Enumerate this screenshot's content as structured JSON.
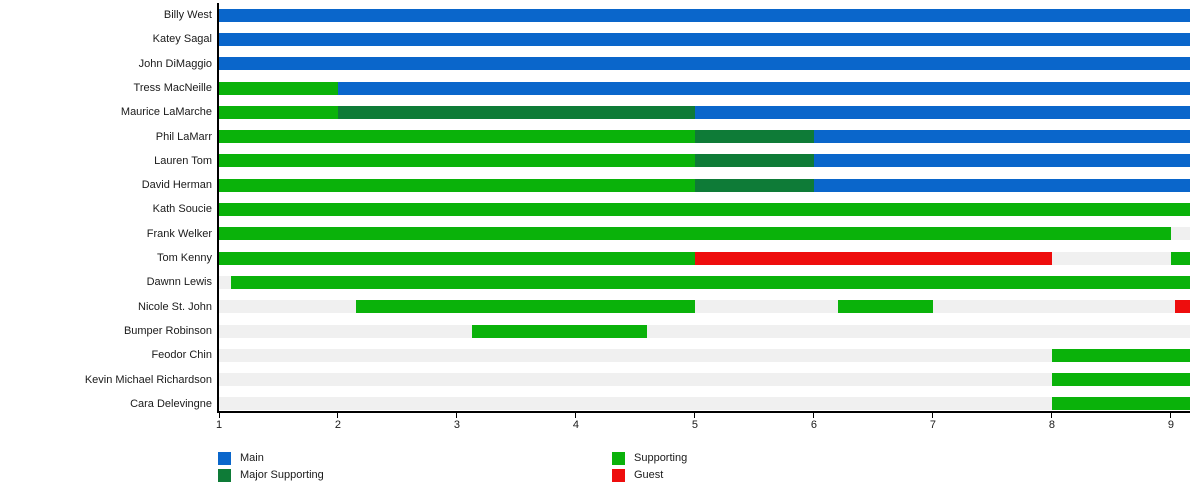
{
  "chart_data": {
    "type": "bar",
    "subtype": "horizontal-stacked-timeline",
    "title": "",
    "xlabel": "",
    "ylabel": "",
    "grid": false,
    "legend_position": "bottom",
    "x_axis": {
      "min": 1,
      "max": 9.16,
      "ticks": [
        1,
        2,
        3,
        4,
        5,
        6,
        7,
        8,
        9
      ]
    },
    "legend": [
      {
        "key": "main",
        "label": "Main"
      },
      {
        "key": "major_supporting",
        "label": "Major Supporting"
      },
      {
        "key": "supporting",
        "label": "Supporting"
      },
      {
        "key": "guest",
        "label": "Guest"
      }
    ],
    "colors": {
      "main": "#0a66cb",
      "major_supporting": "#0e7b37",
      "supporting": "#0ab20a",
      "guest": "#ee0d0d",
      "track": "#f0f0f0",
      "axis": "#000000",
      "text": "#1a1a1a"
    },
    "rows": [
      {
        "name": "Billy West",
        "segments": [
          {
            "role": "main",
            "start": 1,
            "end": 9.16
          }
        ]
      },
      {
        "name": "Katey Sagal",
        "segments": [
          {
            "role": "main",
            "start": 1,
            "end": 9.16
          }
        ]
      },
      {
        "name": "John DiMaggio",
        "segments": [
          {
            "role": "main",
            "start": 1,
            "end": 9.16
          }
        ]
      },
      {
        "name": "Tress MacNeille",
        "segments": [
          {
            "role": "supporting",
            "start": 1,
            "end": 2
          },
          {
            "role": "main",
            "start": 2,
            "end": 9.16
          }
        ]
      },
      {
        "name": "Maurice LaMarche",
        "segments": [
          {
            "role": "supporting",
            "start": 1,
            "end": 2
          },
          {
            "role": "major_supporting",
            "start": 2,
            "end": 5
          },
          {
            "role": "main",
            "start": 5,
            "end": 9.16
          }
        ]
      },
      {
        "name": "Phil LaMarr",
        "segments": [
          {
            "role": "supporting",
            "start": 1,
            "end": 5
          },
          {
            "role": "major_supporting",
            "start": 5,
            "end": 6
          },
          {
            "role": "main",
            "start": 6,
            "end": 9.16
          }
        ]
      },
      {
        "name": "Lauren Tom",
        "segments": [
          {
            "role": "supporting",
            "start": 1,
            "end": 5
          },
          {
            "role": "major_supporting",
            "start": 5,
            "end": 6
          },
          {
            "role": "main",
            "start": 6,
            "end": 9.16
          }
        ]
      },
      {
        "name": "David Herman",
        "segments": [
          {
            "role": "supporting",
            "start": 1,
            "end": 5
          },
          {
            "role": "major_supporting",
            "start": 5,
            "end": 6
          },
          {
            "role": "main",
            "start": 6,
            "end": 9.16
          }
        ]
      },
      {
        "name": "Kath Soucie",
        "segments": [
          {
            "role": "supporting",
            "start": 1,
            "end": 9.16
          }
        ]
      },
      {
        "name": "Frank Welker",
        "segments": [
          {
            "role": "supporting",
            "start": 1,
            "end": 9
          }
        ]
      },
      {
        "name": "Tom Kenny",
        "segments": [
          {
            "role": "supporting",
            "start": 1,
            "end": 5
          },
          {
            "role": "guest",
            "start": 5,
            "end": 8
          },
          {
            "role": "supporting",
            "start": 9,
            "end": 9.16
          }
        ]
      },
      {
        "name": "Dawnn Lewis",
        "segments": [
          {
            "role": "supporting",
            "start": 1.1,
            "end": 9.16
          }
        ]
      },
      {
        "name": "Nicole St. John",
        "segments": [
          {
            "role": "supporting",
            "start": 2.15,
            "end": 5
          },
          {
            "role": "supporting",
            "start": 6.2,
            "end": 7
          },
          {
            "role": "guest",
            "start": 9.03,
            "end": 9.16
          }
        ]
      },
      {
        "name": "Bumper Robinson",
        "segments": [
          {
            "role": "supporting",
            "start": 3.13,
            "end": 4.6
          }
        ]
      },
      {
        "name": "Feodor Chin",
        "segments": [
          {
            "role": "supporting",
            "start": 8,
            "end": 9.16
          }
        ]
      },
      {
        "name": "Kevin Michael Richardson",
        "segments": [
          {
            "role": "supporting",
            "start": 8,
            "end": 9.16
          }
        ]
      },
      {
        "name": "Cara Delevingne",
        "segments": [
          {
            "role": "supporting",
            "start": 8,
            "end": 9.16
          }
        ]
      }
    ]
  }
}
